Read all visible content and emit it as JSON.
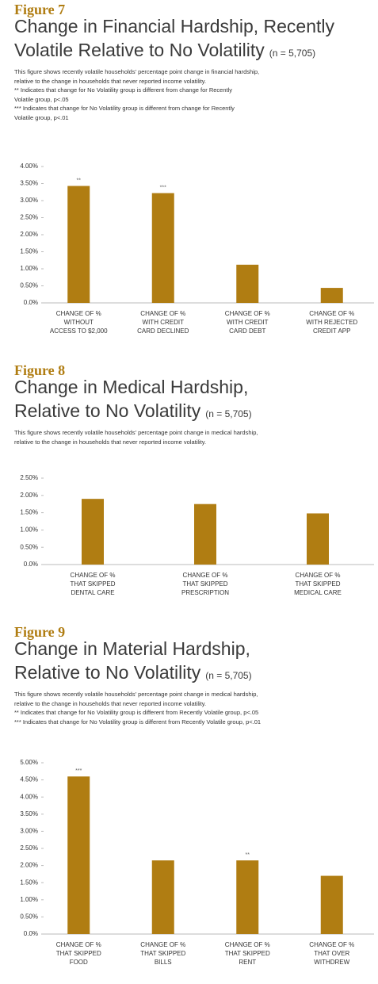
{
  "chart_data": [
    {
      "type": "bar",
      "figure_label": "Figure 7",
      "title": [
        "Change in Financial Hardship, Recently",
        "Volatile Relative to No Volatility"
      ],
      "sample_note": "(n = 5,705)",
      "description": [
        "This figure shows recently volatile households' percentage point change in financial hardship,",
        "relative to the change in households that never reported income volatility.",
        "** Indicates that change for No Volatility group is different from change for Recently",
        "Volatile group, p<.05",
        "*** Indicates that change for No Volatility group is different from change for Recently",
        "Volatile group, p<.01"
      ],
      "categories": [
        [
          "CHANGE OF %",
          "WITHOUT",
          "ACCESS TO $2,000"
        ],
        [
          "CHANGE OF %",
          "WITH CREDIT",
          "CARD DECLINED"
        ],
        [
          "CHANGE OF %",
          "WITH CREDIT",
          "CARD DEBT"
        ],
        [
          "CHANGE OF %",
          "WITH REJECTED",
          "CREDIT APP"
        ]
      ],
      "values": [
        3.43,
        3.22,
        1.12,
        0.44
      ],
      "annotations": [
        "**",
        "***",
        null,
        null
      ],
      "color": "#b07d12",
      "ylim": [
        0,
        4
      ],
      "yticks": [
        {
          "value": 0,
          "label": "0.0%"
        },
        {
          "value": 0.5,
          "label": "0.50%"
        },
        {
          "value": 1,
          "label": "1.00%"
        },
        {
          "value": 1.5,
          "label": "1.50%"
        },
        {
          "value": 2,
          "label": "2.00%"
        },
        {
          "value": 2.5,
          "label": "2.50%"
        },
        {
          "value": 3,
          "label": "3.00%"
        },
        {
          "value": 3.5,
          "label": "3.50%"
        },
        {
          "value": 4,
          "label": "4.00%"
        }
      ]
    },
    {
      "type": "bar",
      "figure_label": "Figure 8",
      "title": [
        "Change in Medical Hardship,",
        "Relative to No Volatility"
      ],
      "sample_note": "(n = 5,705)",
      "description": [
        "This figure shows recently volatile households' percentage point change in medical hardship,",
        "relative to the change in households that never reported income volatility."
      ],
      "categories": [
        [
          "CHANGE OF %",
          "THAT SKIPPED",
          "DENTAL CARE"
        ],
        [
          "CHANGE OF %",
          "THAT SKIPPED",
          "PRESCRIPTION"
        ],
        [
          "CHANGE OF %",
          "THAT SKIPPED",
          "MEDICAL CARE"
        ]
      ],
      "values": [
        1.9,
        1.75,
        1.48
      ],
      "color": "#b07d12",
      "ylim": [
        0,
        2.5
      ],
      "yticks": [
        {
          "value": 0,
          "label": "0.0%"
        },
        {
          "value": 0.5,
          "label": "0.50%"
        },
        {
          "value": 1,
          "label": "1.00%"
        },
        {
          "value": 1.5,
          "label": "1.50%"
        },
        {
          "value": 2,
          "label": "2.00%"
        },
        {
          "value": 2.5,
          "label": "2.50%"
        }
      ]
    },
    {
      "type": "bar",
      "figure_label": "Figure 9",
      "title": [
        "Change in Material Hardship,",
        "Relative to No Volatility"
      ],
      "sample_note": "(n = 5,705)",
      "description": [
        "This figure shows recently volatile households' percentage point change in medical hardship,",
        "relative to the change in households that never reported income volatility.",
        "** Indicates that change for No Volatility group is different from Recently Volatile group, p<.05",
        "*** Indicates that change for No Volatility group is different from Recently Volatile group, p<.01"
      ],
      "categories": [
        [
          "CHANGE OF %",
          "THAT SKIPPED",
          "FOOD"
        ],
        [
          "CHANGE OF %",
          "THAT SKIPPED",
          "BILLS"
        ],
        [
          "CHANGE OF %",
          "THAT SKIPPED",
          "RENT"
        ],
        [
          "CHANGE OF %",
          "THAT OVER",
          "WITHDREW"
        ]
      ],
      "values": [
        4.6,
        2.15,
        2.15,
        1.7
      ],
      "annotations": [
        "***",
        null,
        "**",
        null
      ],
      "color": "#b07d12",
      "ylim": [
        0,
        5
      ],
      "yticks": [
        {
          "value": 0,
          "label": "0.0%"
        },
        {
          "value": 0.5,
          "label": "0.50%"
        },
        {
          "value": 1,
          "label": "1.00%"
        },
        {
          "value": 1.5,
          "label": "1.50%"
        },
        {
          "value": 2,
          "label": "2.00%"
        },
        {
          "value": 2.5,
          "label": "2.50%"
        },
        {
          "value": 3,
          "label": "3.00%"
        },
        {
          "value": 3.5,
          "label": "3.50%"
        },
        {
          "value": 4,
          "label": "4.00%"
        },
        {
          "value": 4.5,
          "label": "4.50%"
        },
        {
          "value": 5,
          "label": "5.00%"
        }
      ]
    }
  ]
}
